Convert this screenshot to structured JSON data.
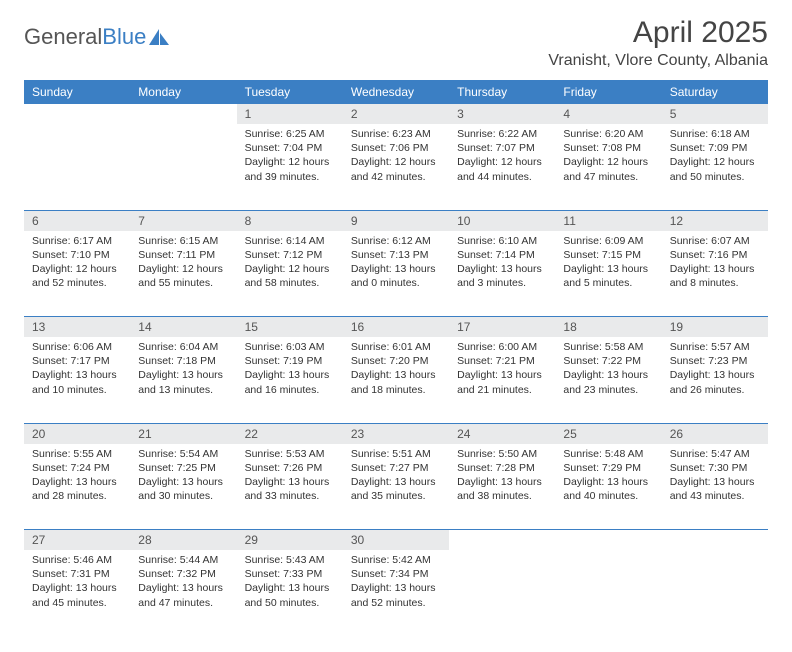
{
  "logo": {
    "text_gray": "General",
    "text_blue": "Blue"
  },
  "title": "April 2025",
  "location": "Vranisht, Vlore County, Albania",
  "header_bg": "#3b7fc4",
  "daynum_bg": "#e9eaeb",
  "divider_color": "#3b7fc4",
  "weekdays": [
    "Sunday",
    "Monday",
    "Tuesday",
    "Wednesday",
    "Thursday",
    "Friday",
    "Saturday"
  ],
  "weeks": [
    [
      null,
      null,
      {
        "n": "1",
        "sr": "Sunrise: 6:25 AM",
        "ss": "Sunset: 7:04 PM",
        "d1": "Daylight: 12 hours",
        "d2": "and 39 minutes."
      },
      {
        "n": "2",
        "sr": "Sunrise: 6:23 AM",
        "ss": "Sunset: 7:06 PM",
        "d1": "Daylight: 12 hours",
        "d2": "and 42 minutes."
      },
      {
        "n": "3",
        "sr": "Sunrise: 6:22 AM",
        "ss": "Sunset: 7:07 PM",
        "d1": "Daylight: 12 hours",
        "d2": "and 44 minutes."
      },
      {
        "n": "4",
        "sr": "Sunrise: 6:20 AM",
        "ss": "Sunset: 7:08 PM",
        "d1": "Daylight: 12 hours",
        "d2": "and 47 minutes."
      },
      {
        "n": "5",
        "sr": "Sunrise: 6:18 AM",
        "ss": "Sunset: 7:09 PM",
        "d1": "Daylight: 12 hours",
        "d2": "and 50 minutes."
      }
    ],
    [
      {
        "n": "6",
        "sr": "Sunrise: 6:17 AM",
        "ss": "Sunset: 7:10 PM",
        "d1": "Daylight: 12 hours",
        "d2": "and 52 minutes."
      },
      {
        "n": "7",
        "sr": "Sunrise: 6:15 AM",
        "ss": "Sunset: 7:11 PM",
        "d1": "Daylight: 12 hours",
        "d2": "and 55 minutes."
      },
      {
        "n": "8",
        "sr": "Sunrise: 6:14 AM",
        "ss": "Sunset: 7:12 PM",
        "d1": "Daylight: 12 hours",
        "d2": "and 58 minutes."
      },
      {
        "n": "9",
        "sr": "Sunrise: 6:12 AM",
        "ss": "Sunset: 7:13 PM",
        "d1": "Daylight: 13 hours",
        "d2": "and 0 minutes."
      },
      {
        "n": "10",
        "sr": "Sunrise: 6:10 AM",
        "ss": "Sunset: 7:14 PM",
        "d1": "Daylight: 13 hours",
        "d2": "and 3 minutes."
      },
      {
        "n": "11",
        "sr": "Sunrise: 6:09 AM",
        "ss": "Sunset: 7:15 PM",
        "d1": "Daylight: 13 hours",
        "d2": "and 5 minutes."
      },
      {
        "n": "12",
        "sr": "Sunrise: 6:07 AM",
        "ss": "Sunset: 7:16 PM",
        "d1": "Daylight: 13 hours",
        "d2": "and 8 minutes."
      }
    ],
    [
      {
        "n": "13",
        "sr": "Sunrise: 6:06 AM",
        "ss": "Sunset: 7:17 PM",
        "d1": "Daylight: 13 hours",
        "d2": "and 10 minutes."
      },
      {
        "n": "14",
        "sr": "Sunrise: 6:04 AM",
        "ss": "Sunset: 7:18 PM",
        "d1": "Daylight: 13 hours",
        "d2": "and 13 minutes."
      },
      {
        "n": "15",
        "sr": "Sunrise: 6:03 AM",
        "ss": "Sunset: 7:19 PM",
        "d1": "Daylight: 13 hours",
        "d2": "and 16 minutes."
      },
      {
        "n": "16",
        "sr": "Sunrise: 6:01 AM",
        "ss": "Sunset: 7:20 PM",
        "d1": "Daylight: 13 hours",
        "d2": "and 18 minutes."
      },
      {
        "n": "17",
        "sr": "Sunrise: 6:00 AM",
        "ss": "Sunset: 7:21 PM",
        "d1": "Daylight: 13 hours",
        "d2": "and 21 minutes."
      },
      {
        "n": "18",
        "sr": "Sunrise: 5:58 AM",
        "ss": "Sunset: 7:22 PM",
        "d1": "Daylight: 13 hours",
        "d2": "and 23 minutes."
      },
      {
        "n": "19",
        "sr": "Sunrise: 5:57 AM",
        "ss": "Sunset: 7:23 PM",
        "d1": "Daylight: 13 hours",
        "d2": "and 26 minutes."
      }
    ],
    [
      {
        "n": "20",
        "sr": "Sunrise: 5:55 AM",
        "ss": "Sunset: 7:24 PM",
        "d1": "Daylight: 13 hours",
        "d2": "and 28 minutes."
      },
      {
        "n": "21",
        "sr": "Sunrise: 5:54 AM",
        "ss": "Sunset: 7:25 PM",
        "d1": "Daylight: 13 hours",
        "d2": "and 30 minutes."
      },
      {
        "n": "22",
        "sr": "Sunrise: 5:53 AM",
        "ss": "Sunset: 7:26 PM",
        "d1": "Daylight: 13 hours",
        "d2": "and 33 minutes."
      },
      {
        "n": "23",
        "sr": "Sunrise: 5:51 AM",
        "ss": "Sunset: 7:27 PM",
        "d1": "Daylight: 13 hours",
        "d2": "and 35 minutes."
      },
      {
        "n": "24",
        "sr": "Sunrise: 5:50 AM",
        "ss": "Sunset: 7:28 PM",
        "d1": "Daylight: 13 hours",
        "d2": "and 38 minutes."
      },
      {
        "n": "25",
        "sr": "Sunrise: 5:48 AM",
        "ss": "Sunset: 7:29 PM",
        "d1": "Daylight: 13 hours",
        "d2": "and 40 minutes."
      },
      {
        "n": "26",
        "sr": "Sunrise: 5:47 AM",
        "ss": "Sunset: 7:30 PM",
        "d1": "Daylight: 13 hours",
        "d2": "and 43 minutes."
      }
    ],
    [
      {
        "n": "27",
        "sr": "Sunrise: 5:46 AM",
        "ss": "Sunset: 7:31 PM",
        "d1": "Daylight: 13 hours",
        "d2": "and 45 minutes."
      },
      {
        "n": "28",
        "sr": "Sunrise: 5:44 AM",
        "ss": "Sunset: 7:32 PM",
        "d1": "Daylight: 13 hours",
        "d2": "and 47 minutes."
      },
      {
        "n": "29",
        "sr": "Sunrise: 5:43 AM",
        "ss": "Sunset: 7:33 PM",
        "d1": "Daylight: 13 hours",
        "d2": "and 50 minutes."
      },
      {
        "n": "30",
        "sr": "Sunrise: 5:42 AM",
        "ss": "Sunset: 7:34 PM",
        "d1": "Daylight: 13 hours",
        "d2": "and 52 minutes."
      },
      null,
      null,
      null
    ]
  ]
}
